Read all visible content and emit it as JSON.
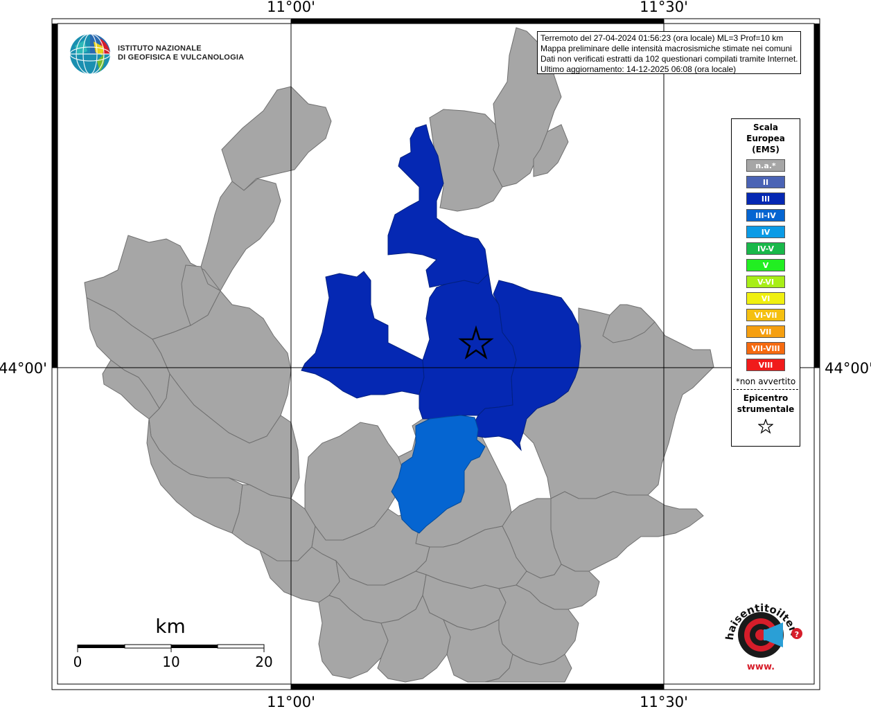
{
  "coordinates": {
    "top_left": "11°00'",
    "top_right": "11°30'",
    "bottom_left": "11°00'",
    "bottom_right": "11°30'",
    "left_lat": "44°00'",
    "right_lat": "44°00'"
  },
  "info_box": {
    "line1": "Terremoto del 27-04-2024 01:56:23 (ora locale) ML=3 Prof=10 km",
    "line2": "Mappa preliminare delle intensità macrosismiche stimate nei comuni",
    "line3": "Dati non verificati estratti da 102 questionari compilati tramite Internet.",
    "line4": "Ultimo aggiornamento: 14-12-2025 06:08 (ora locale)"
  },
  "logo": {
    "line1": "ISTITUTO NAZIONALE",
    "line2": "DI GEOFISICA E VULCANOLOGIA"
  },
  "legend": {
    "title_line1": "Scala",
    "title_line2": "Europea",
    "title_line3": "(EMS)",
    "items": [
      {
        "label": "n.a.*",
        "color": "#a6a6a6"
      },
      {
        "label": "II",
        "color": "#4a63b5"
      },
      {
        "label": "III",
        "color": "#0528b3"
      },
      {
        "label": "III-IV",
        "color": "#0565d1"
      },
      {
        "label": "IV",
        "color": "#0b9be6"
      },
      {
        "label": "IV-V",
        "color": "#19b84a"
      },
      {
        "label": "V",
        "color": "#22ee22"
      },
      {
        "label": "V-VI",
        "color": "#a8ee17"
      },
      {
        "label": "VI",
        "color": "#f0f010"
      },
      {
        "label": "VI-VII",
        "color": "#f5c010"
      },
      {
        "label": "VII",
        "color": "#f59f10"
      },
      {
        "label": "VII-VIII",
        "color": "#f56a10"
      },
      {
        "label": "VIII",
        "color": "#f01b1b"
      }
    ],
    "note": "*non avvertito",
    "epicenter_line1": "Epicentro",
    "epicenter_line2": "strumentale"
  },
  "scale_bar": {
    "unit": "km",
    "ticks": [
      "0",
      "10",
      "20"
    ]
  },
  "hsit_logo": {
    "text": "haisentitoilterremoto.it",
    "www": "www."
  },
  "colors": {
    "na": "#a6a6a6",
    "intensity_III": "#0528b3",
    "intensity_III_IV": "#0565d1"
  }
}
